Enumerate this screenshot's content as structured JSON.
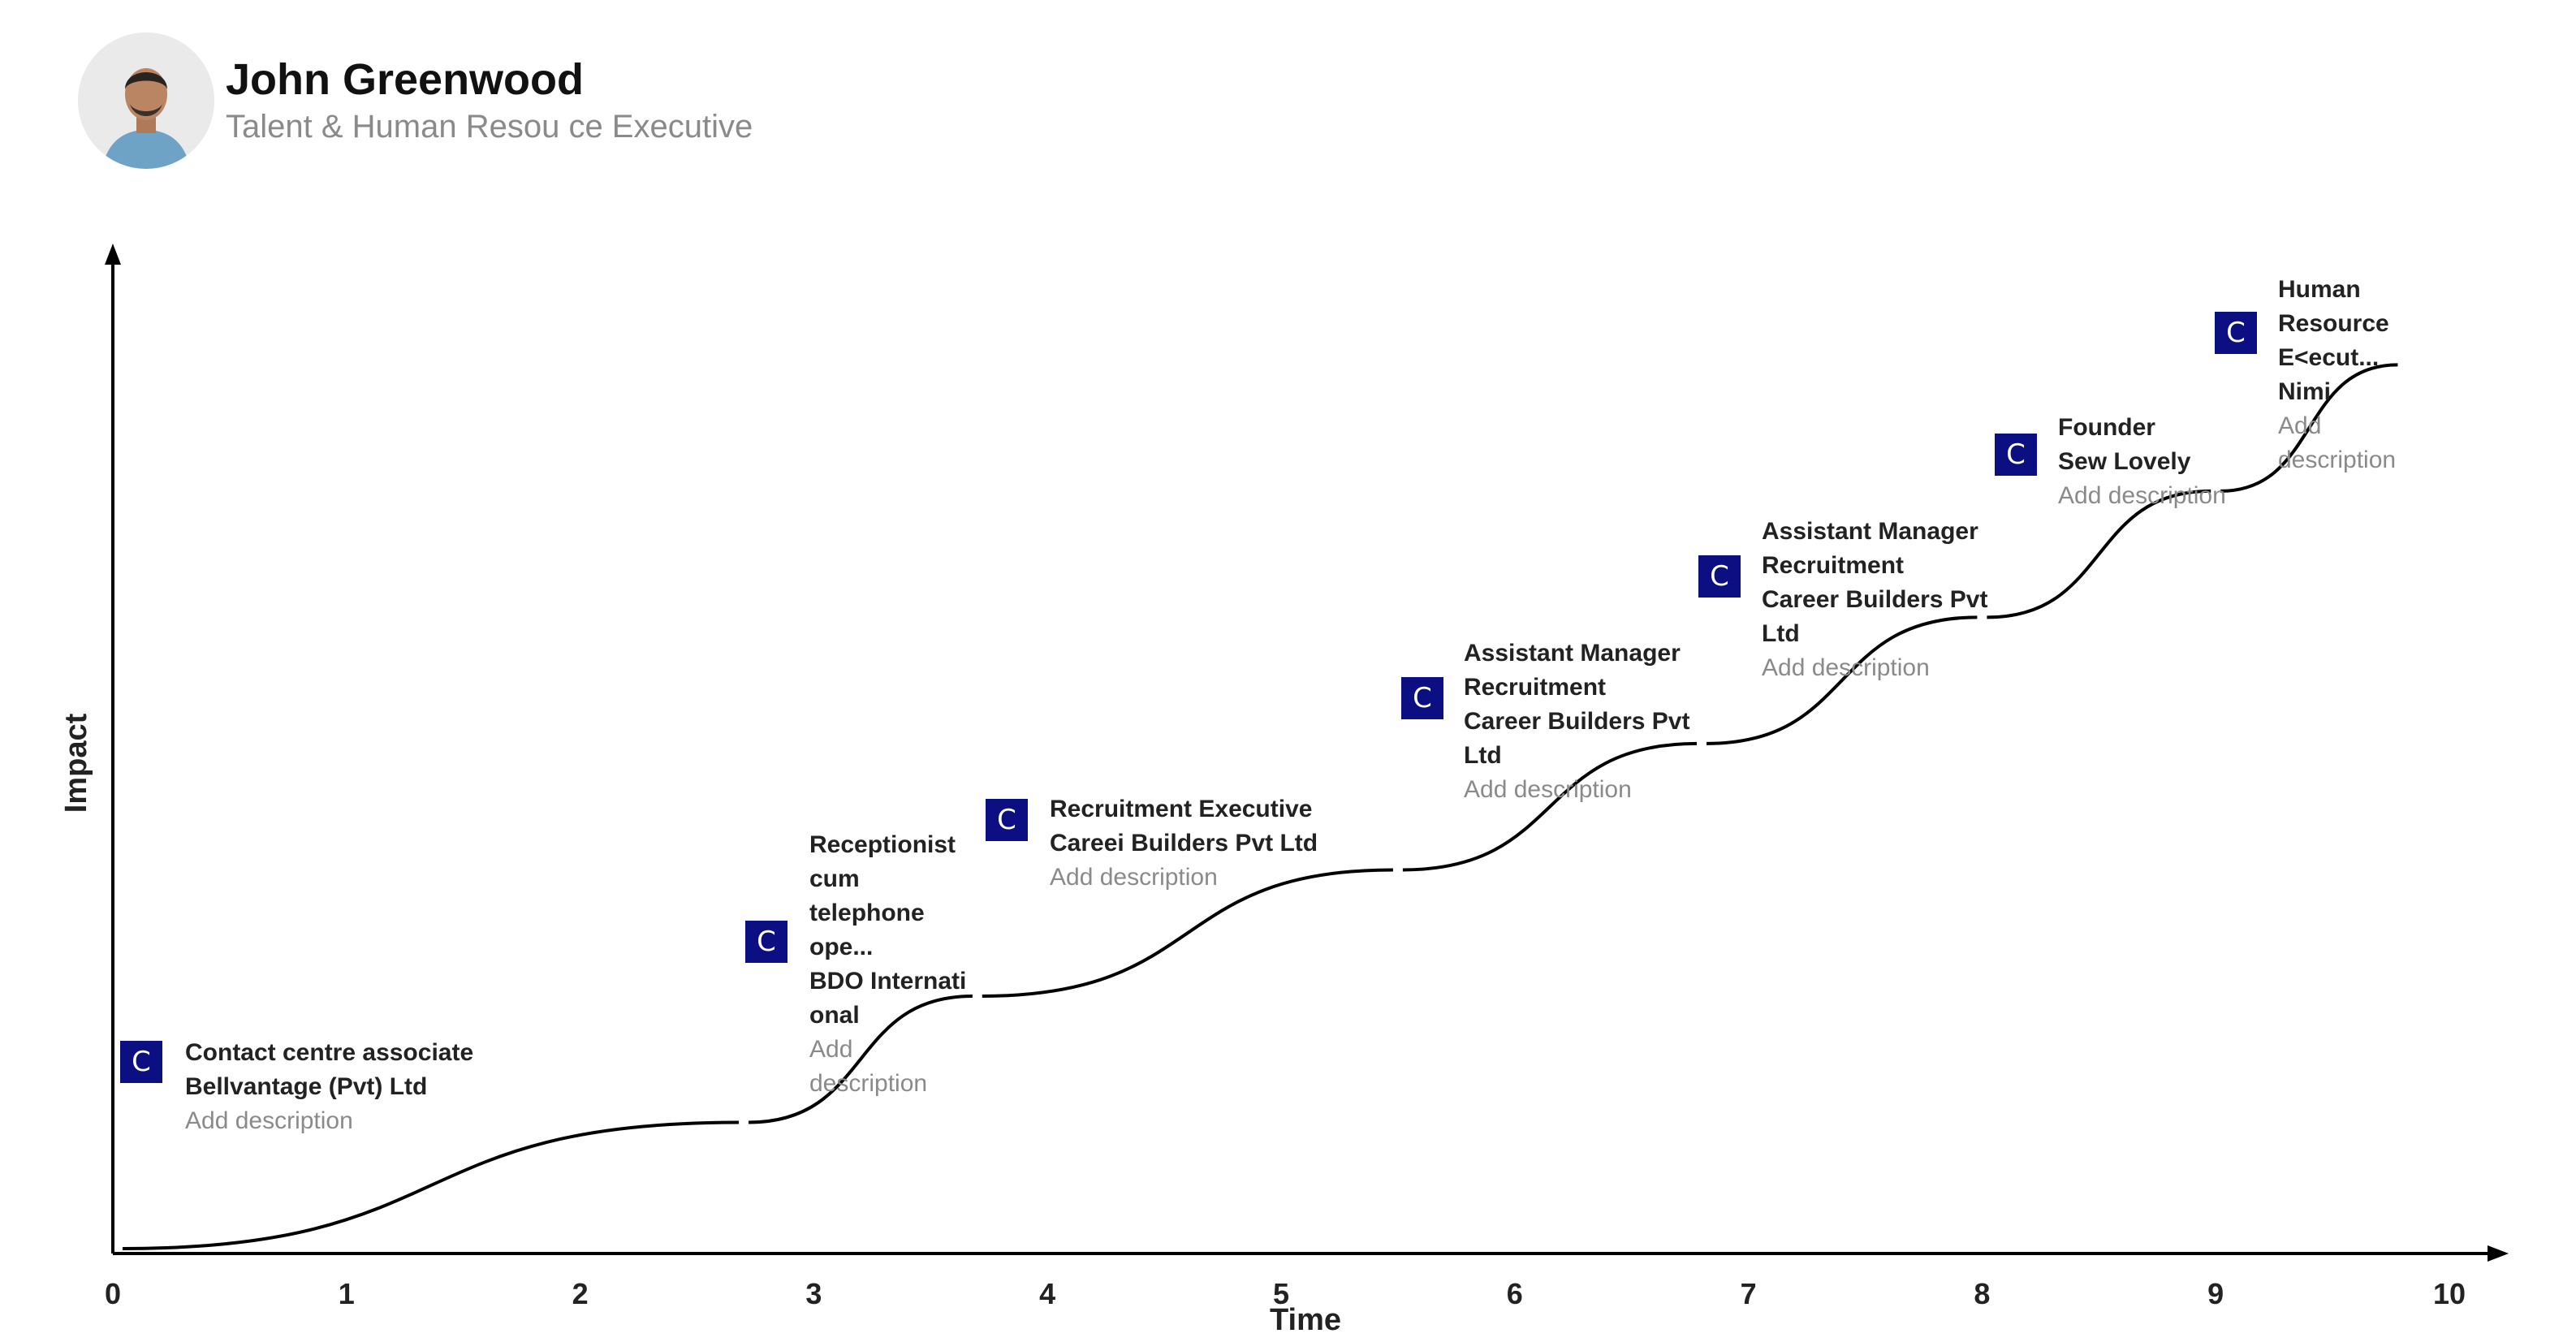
{
  "profile": {
    "name": "John Greenwood",
    "role": "Talent & Human Resou ce Executive",
    "avatar_icon": "person-photo"
  },
  "chart_data": {
    "type": "line",
    "xlabel": "Time",
    "ylabel": "Impact",
    "xlim": [
      0,
      10
    ],
    "ylim": [
      0,
      1
    ],
    "x_ticks": [
      0,
      1,
      2,
      3,
      4,
      5,
      6,
      7,
      8,
      9,
      10
    ],
    "line_color": "#000000",
    "badge_color": "#0b0f82",
    "badge_glyph": "C",
    "milestones": [
      {
        "x_start": 0.0,
        "x_end": 2.7,
        "y_start": 0.0,
        "y_end": 0.12,
        "title": "Contact centre associate",
        "company": "Bellvantage (Pvt) Ltd",
        "description": "Add description"
      },
      {
        "x_start": 2.7,
        "x_end": 3.7,
        "y_start": 0.12,
        "y_end": 0.24,
        "title": "Receptionist cum telephone ope...",
        "company": "BDO Internati onal",
        "description": "Add description"
      },
      {
        "x_start": 3.7,
        "x_end": 5.5,
        "y_start": 0.24,
        "y_end": 0.36,
        "title": "Recruitment Executive",
        "company": "Careei Builders Pvt Ltd",
        "description": "Add description"
      },
      {
        "x_start": 5.5,
        "x_end": 6.8,
        "y_start": 0.36,
        "y_end": 0.48,
        "title": "Assistant Manager Recruitment",
        "company": "Career Builders Pvt Ltd",
        "description": "Add description"
      },
      {
        "x_start": 6.8,
        "x_end": 8.0,
        "y_start": 0.48,
        "y_end": 0.6,
        "title": "Assistant Manager Recruitment",
        "company": "Career Builders Pvt Ltd",
        "description": "Add description"
      },
      {
        "x_start": 8.0,
        "x_end": 9.0,
        "y_start": 0.6,
        "y_end": 0.72,
        "title": "Founder",
        "company": "Sew Lovely",
        "description": "Add description"
      },
      {
        "x_start": 9.0,
        "x_end": 9.8,
        "y_start": 0.72,
        "y_end": 0.84,
        "title": "Human Resource E<ecut...",
        "company": "Nimi",
        "description": "Add description"
      }
    ]
  }
}
